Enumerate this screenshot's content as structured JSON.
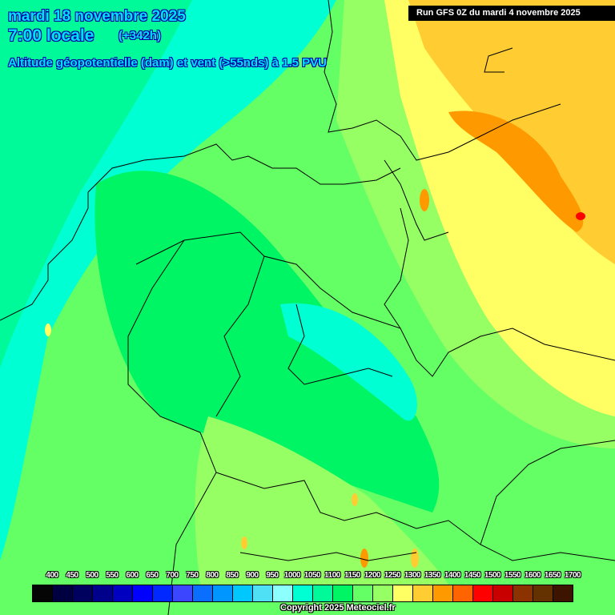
{
  "header": {
    "date": "mardi 18 novembre 2025",
    "time": "7:00 locale",
    "lead": "(+342h)",
    "parameter": "Altitude géopotentielle (dam) et vent (>55nds) à 1.5 PVU",
    "run": "Run GFS 0Z du mardi 4 novembre 2025"
  },
  "legend": {
    "labels": [
      "400",
      "450",
      "500",
      "550",
      "600",
      "650",
      "700",
      "750",
      "800",
      "850",
      "900",
      "950",
      "1000",
      "1050",
      "1100",
      "1150",
      "1200",
      "1250",
      "1300",
      "1350",
      "1400",
      "1450",
      "1500",
      "1550",
      "1600",
      "1650",
      "1700"
    ],
    "colors": [
      "#050505",
      "#000040",
      "#00005f",
      "#00008a",
      "#0000c0",
      "#0000ff",
      "#0028ff",
      "#3c46ff",
      "#0a6eff",
      "#0096ff",
      "#00c8ff",
      "#50e0f5",
      "#8cffff",
      "#00ffd2",
      "#00fa9a",
      "#00f564",
      "#64ff64",
      "#96ff64",
      "#ffff64",
      "#ffcc32",
      "#ff9900",
      "#ff6400",
      "#ff0000",
      "#c80000",
      "#8c3200",
      "#643200",
      "#3c1400"
    ]
  },
  "footer": {
    "copyright": "Copyright 2025 Meteociel.fr"
  }
}
